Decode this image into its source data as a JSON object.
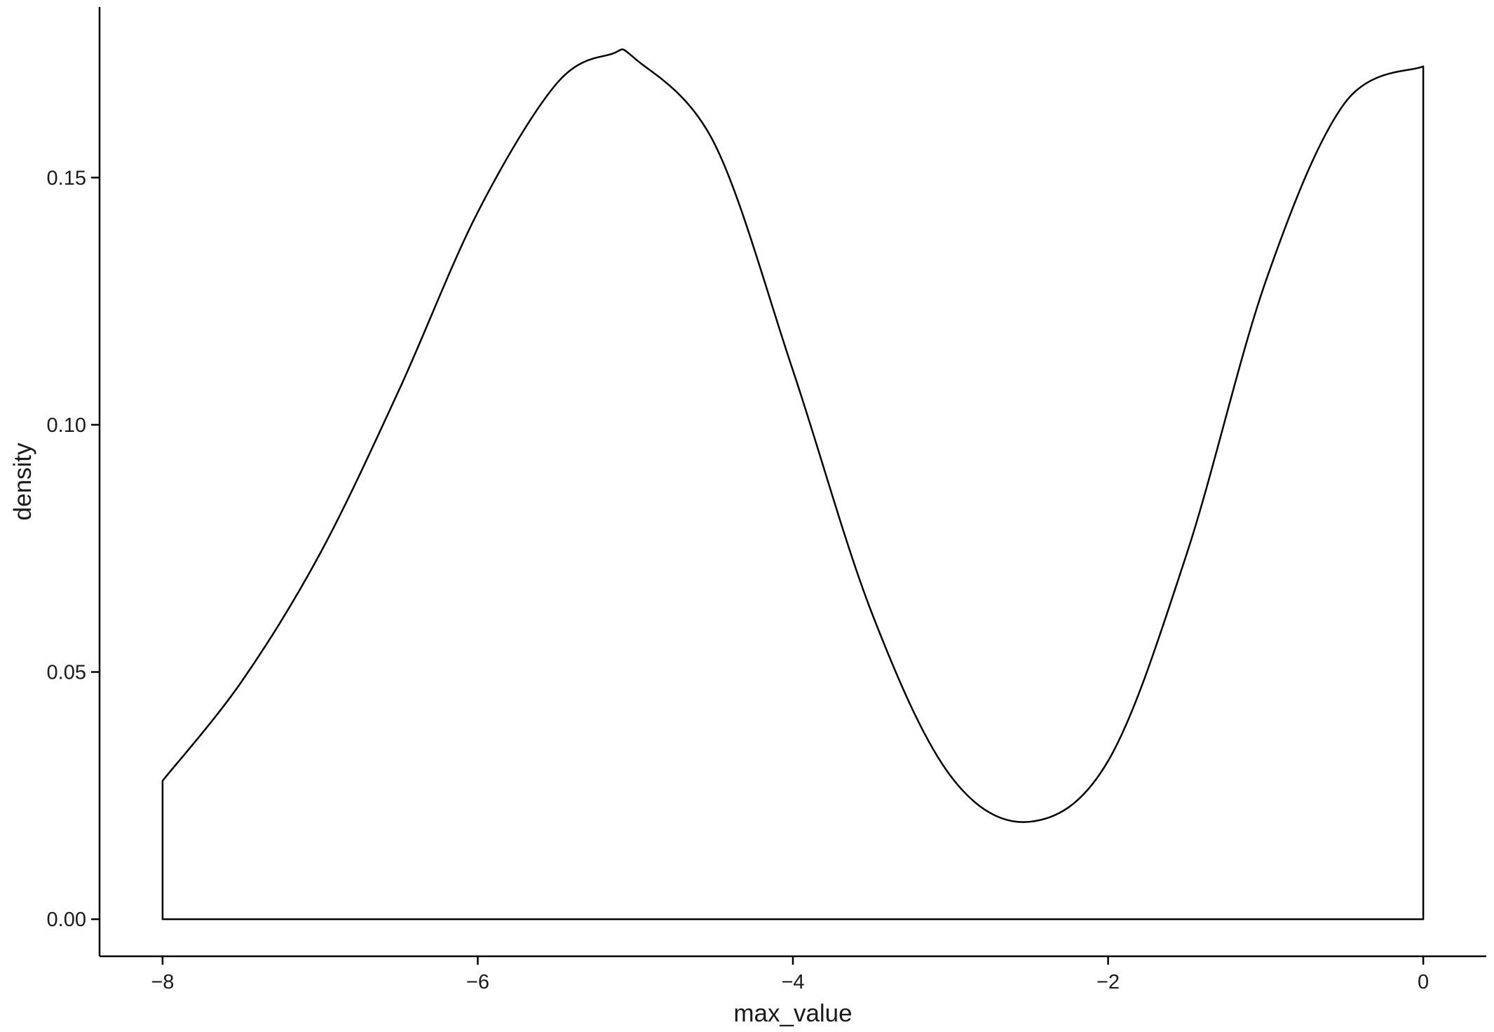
{
  "chart_data": {
    "type": "area",
    "geom": "density",
    "title": "",
    "xlabel": "max_value",
    "ylabel": "density",
    "xlim": [
      -8.4,
      0.4
    ],
    "ylim": [
      -0.0075,
      0.1845
    ],
    "xticks": [
      -8,
      -6,
      -4,
      -2,
      0
    ],
    "xtick_labels": [
      "−8",
      "−6",
      "−4",
      "−2",
      "0"
    ],
    "yticks": [
      0.0,
      0.05,
      0.1,
      0.15
    ],
    "ytick_labels": [
      "0.00",
      "0.05",
      "0.10",
      "0.15"
    ],
    "grid": false,
    "legend": "none",
    "line_color": "#000000",
    "fill_color": "none",
    "series": [
      {
        "x": [
          -8.0,
          -7.5,
          -7.0,
          -6.5,
          -6.0,
          -5.5,
          -5.15,
          -5.0,
          -4.5,
          -4.0,
          -3.5,
          -3.0,
          -2.5,
          -2.0,
          -1.5,
          -1.0,
          -0.5,
          0.0
        ],
        "y": [
          0.028,
          0.048,
          0.074,
          0.107,
          0.143,
          0.169,
          0.175,
          0.174,
          0.157,
          0.111,
          0.062,
          0.029,
          0.0197,
          0.032,
          0.074,
          0.129,
          0.165,
          0.1725
        ]
      }
    ]
  }
}
